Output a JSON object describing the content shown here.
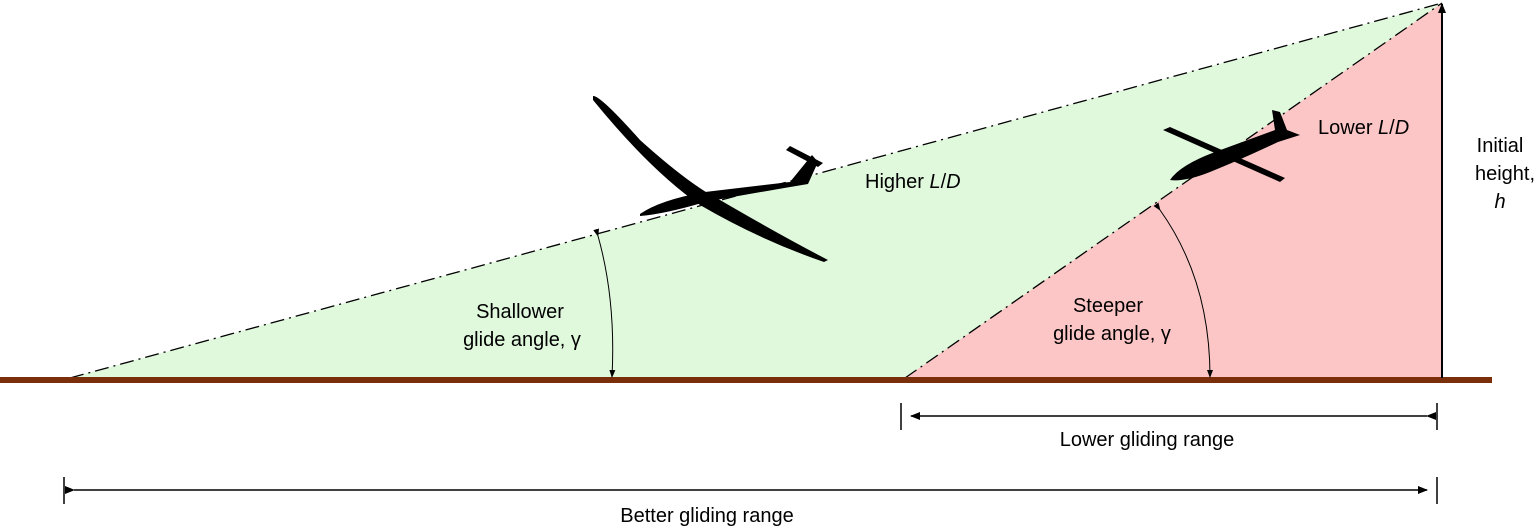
{
  "diagram": {
    "higher_ld": [
      "Higher ",
      "L",
      "/",
      "D"
    ],
    "lower_ld": [
      "Lower ",
      "L",
      "/",
      "D"
    ],
    "initial_height": [
      "Initial",
      "height,",
      "h"
    ],
    "shallower_angle": [
      "Shallower",
      "glide angle, γ"
    ],
    "steeper_angle": [
      "Steeper",
      "glide angle, γ"
    ],
    "lower_range": "Lower gliding range",
    "better_range": "Better gliding range"
  }
}
